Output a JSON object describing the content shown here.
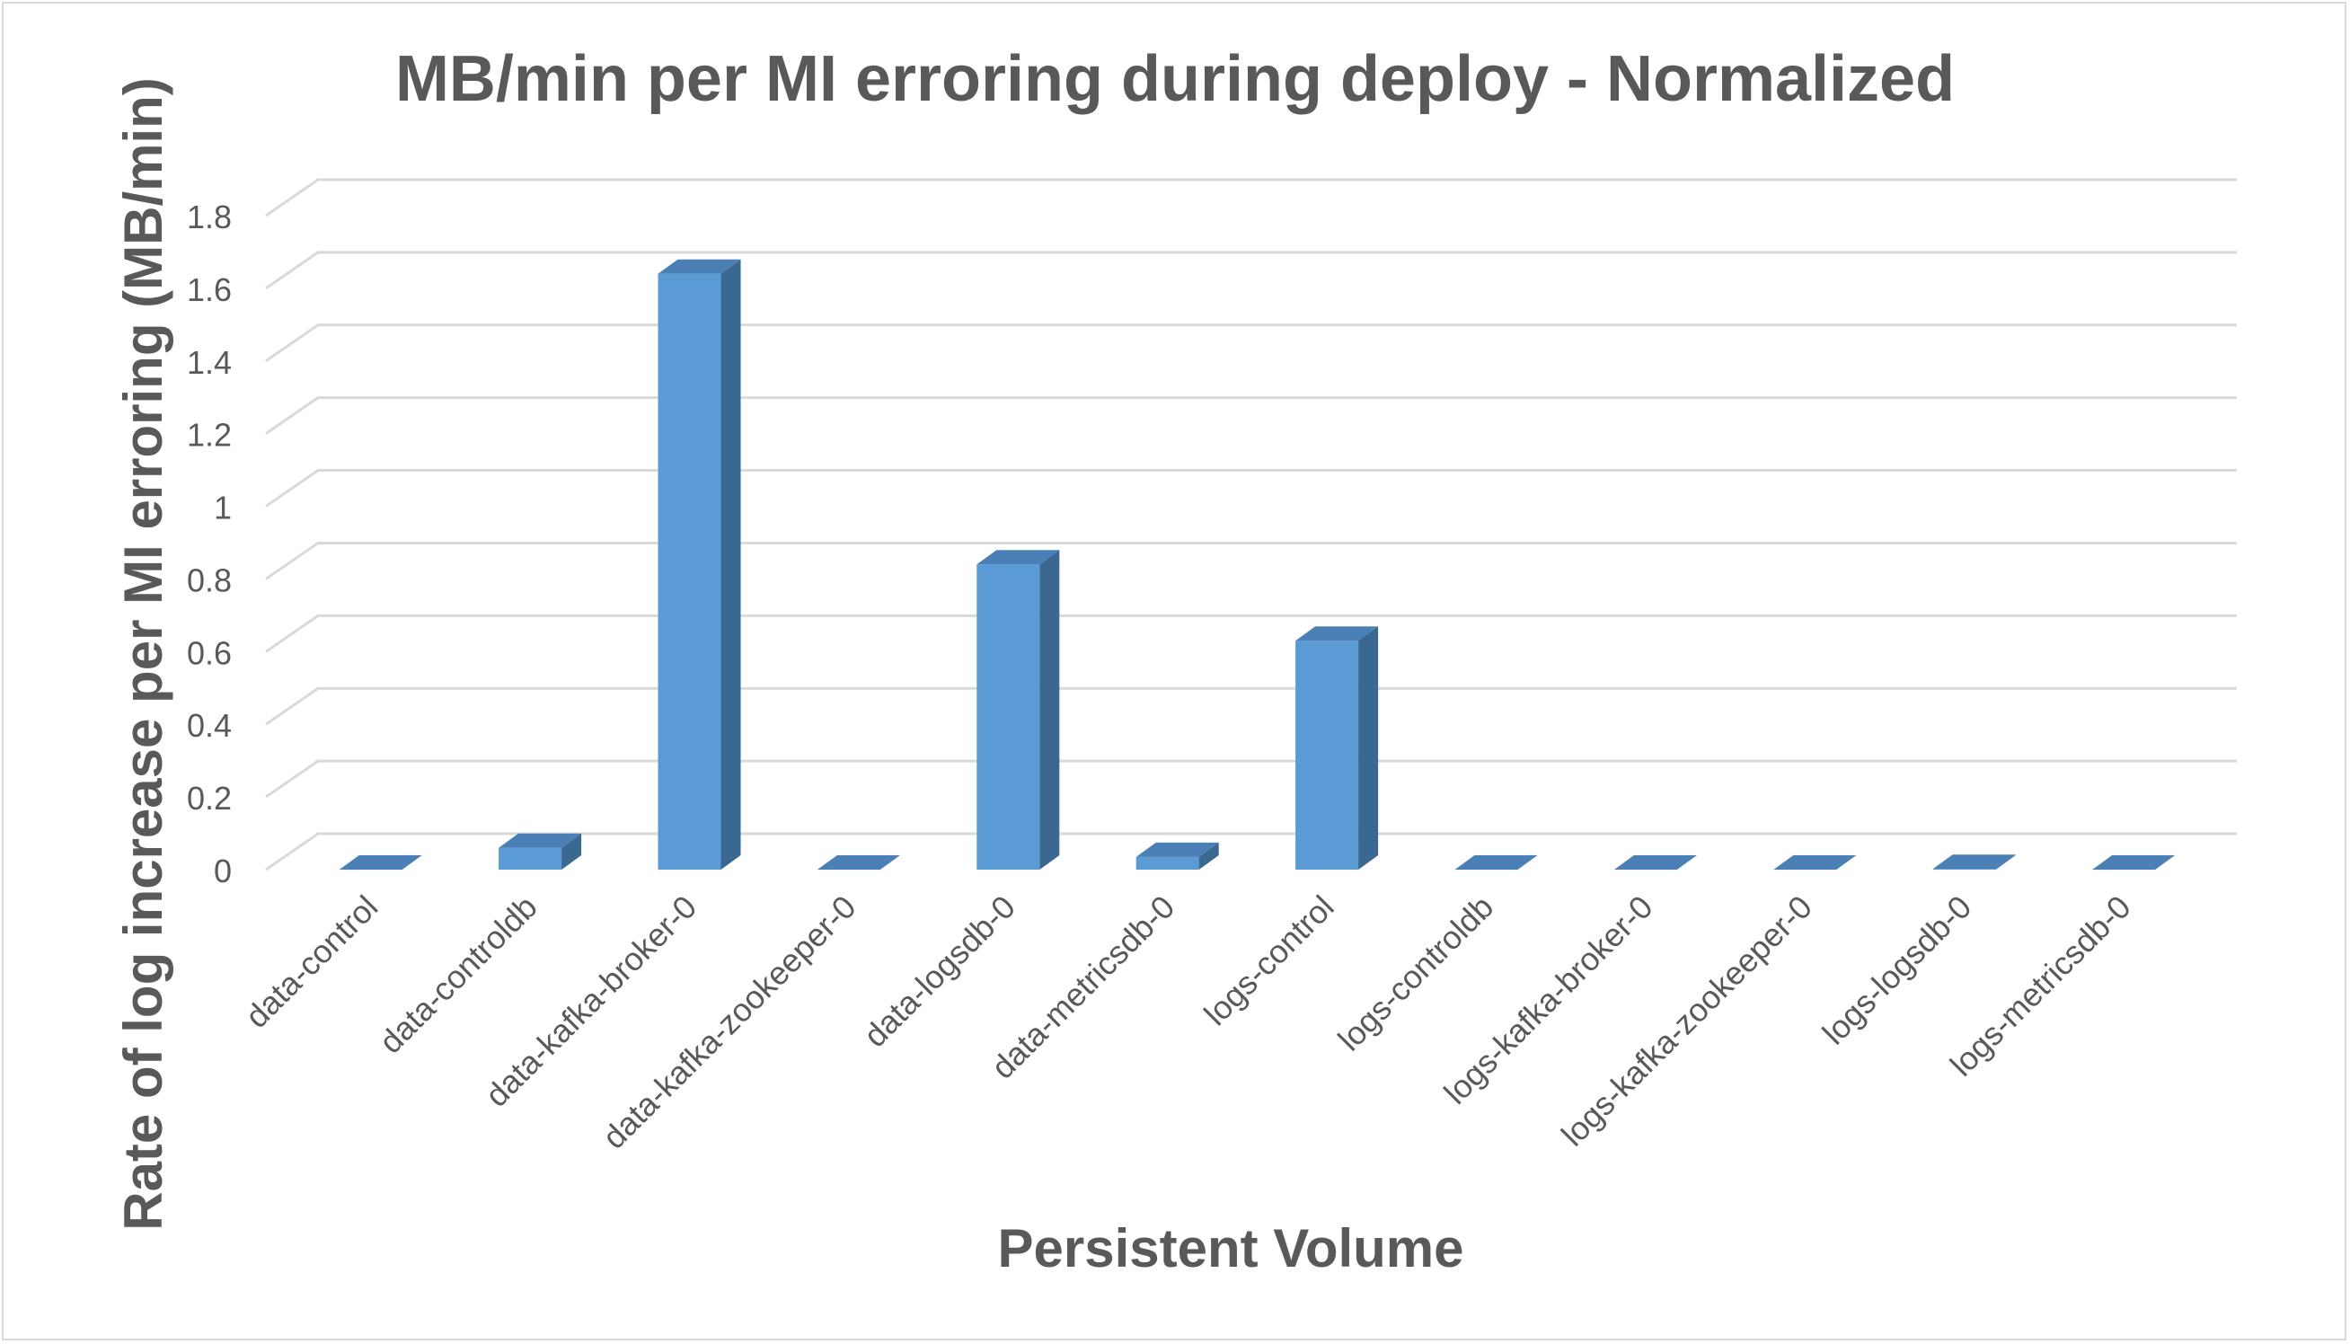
{
  "chart_data": {
    "type": "bar",
    "title": "MB/min per MI erroring during deploy - Normalized",
    "xlabel": "Persistent Volume",
    "ylabel": "Rate of log increase per MI erroring (MB/min)",
    "categories": [
      "data-control",
      "data-controldb",
      "data-kafka-broker-0",
      "data-kafka-zookeeper-0",
      "data-logsdb-0",
      "data-metricsdb-0",
      "logs-control",
      "logs-controldb",
      "logs-kafka-broker-0",
      "logs-kafka-zookeeper-0",
      "logs-logsdb-0",
      "logs-metricsdb-0"
    ],
    "values": [
      0,
      0.06,
      1.64,
      0,
      0.84,
      0.035,
      0.63,
      0,
      0,
      0,
      0.002,
      0
    ],
    "ylim": [
      0,
      1.8
    ],
    "yticks": [
      "0",
      "0.2",
      "0.4",
      "0.6",
      "0.8",
      "1",
      "1.2",
      "1.4",
      "1.6",
      "1.8"
    ],
    "grid": true,
    "legend": "none",
    "style": "3d-column",
    "colors": {
      "bar_front": "#5b9bd5",
      "bar_side": "#3a6890",
      "bar_top": "#4a80b5",
      "grid": "#d9d9d9",
      "text": "#595959"
    }
  }
}
